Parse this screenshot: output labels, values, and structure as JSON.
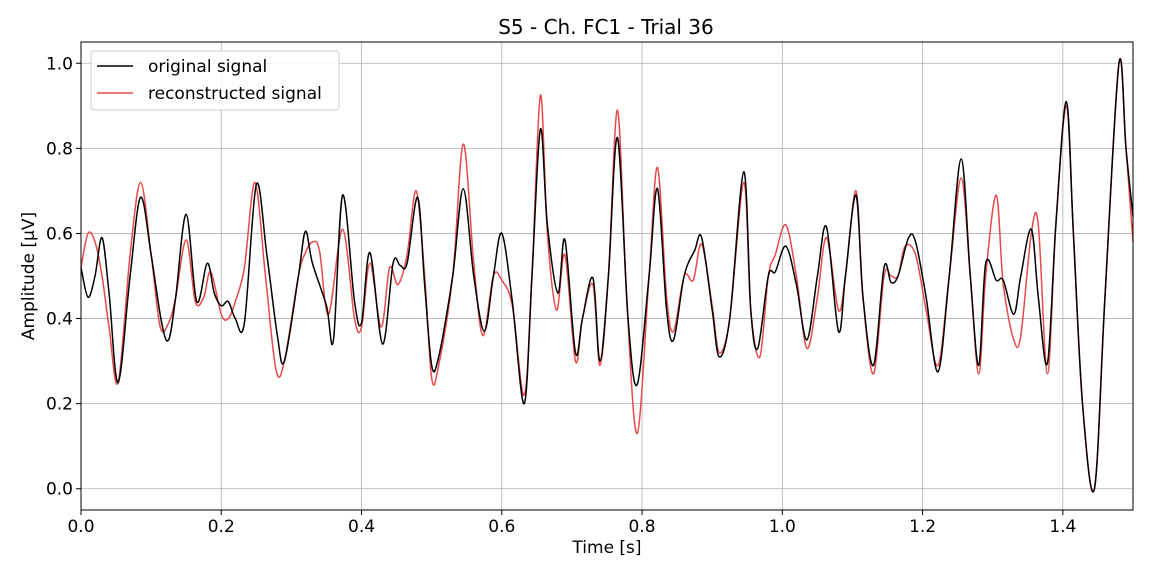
{
  "chart_data": {
    "type": "line",
    "title": "S5 - Ch. FC1 - Trial 36",
    "xlabel": "Time [s]",
    "ylabel": "Amplitude [μV]",
    "xlim": [
      0,
      1.5
    ],
    "ylim": [
      -0.05,
      1.05
    ],
    "xticks": [
      0.0,
      0.2,
      0.4,
      0.6,
      0.8,
      1.0,
      1.2,
      1.4
    ],
    "xtick_labels": [
      "0.0",
      "0.2",
      "0.4",
      "0.6",
      "0.8",
      "1.0",
      "1.2",
      "1.4"
    ],
    "yticks": [
      0.0,
      0.2,
      0.4,
      0.6,
      0.8,
      1.0
    ],
    "ytick_labels": [
      "0.0",
      "0.2",
      "0.4",
      "0.6",
      "0.8",
      "1.0"
    ],
    "grid": true,
    "legend_position": "top-left",
    "series": [
      {
        "name": "original signal",
        "color": "#000000",
        "x": [
          0.0,
          0.01,
          0.02,
          0.03,
          0.04,
          0.053,
          0.07,
          0.085,
          0.1,
          0.115,
          0.125,
          0.135,
          0.15,
          0.165,
          0.18,
          0.19,
          0.2,
          0.21,
          0.22,
          0.233,
          0.25,
          0.265,
          0.28,
          0.29,
          0.31,
          0.32,
          0.33,
          0.35,
          0.36,
          0.373,
          0.39,
          0.4,
          0.412,
          0.43,
          0.445,
          0.455,
          0.465,
          0.48,
          0.49,
          0.5,
          0.51,
          0.53,
          0.545,
          0.56,
          0.575,
          0.588,
          0.6,
          0.615,
          0.632,
          0.643,
          0.655,
          0.665,
          0.68,
          0.69,
          0.705,
          0.715,
          0.73,
          0.74,
          0.752,
          0.765,
          0.78,
          0.793,
          0.81,
          0.822,
          0.835,
          0.845,
          0.86,
          0.875,
          0.885,
          0.9,
          0.91,
          0.925,
          0.945,
          0.955,
          0.965,
          0.98,
          0.99,
          1.005,
          1.02,
          1.035,
          1.05,
          1.063,
          1.08,
          1.09,
          1.105,
          1.115,
          1.13,
          1.145,
          1.155,
          1.165,
          1.18,
          1.19,
          1.205,
          1.222,
          1.238,
          1.255,
          1.268,
          1.28,
          1.29,
          1.305,
          1.315,
          1.33,
          1.34,
          1.355,
          1.365,
          1.378,
          1.39,
          1.405,
          1.415,
          1.428,
          1.445,
          1.46,
          1.48,
          1.49,
          1.5
        ],
        "values": [
          0.52,
          0.45,
          0.5,
          0.59,
          0.46,
          0.25,
          0.5,
          0.685,
          0.55,
          0.39,
          0.35,
          0.45,
          0.645,
          0.44,
          0.53,
          0.46,
          0.43,
          0.44,
          0.4,
          0.39,
          0.715,
          0.55,
          0.36,
          0.3,
          0.5,
          0.605,
          0.53,
          0.43,
          0.35,
          0.69,
          0.44,
          0.39,
          0.555,
          0.34,
          0.53,
          0.525,
          0.53,
          0.685,
          0.48,
          0.29,
          0.31,
          0.5,
          0.705,
          0.5,
          0.37,
          0.5,
          0.6,
          0.44,
          0.2,
          0.5,
          0.845,
          0.62,
          0.46,
          0.585,
          0.32,
          0.4,
          0.495,
          0.3,
          0.5,
          0.825,
          0.4,
          0.245,
          0.5,
          0.705,
          0.42,
          0.35,
          0.5,
          0.56,
          0.59,
          0.42,
          0.31,
          0.4,
          0.745,
          0.42,
          0.33,
          0.5,
          0.51,
          0.57,
          0.48,
          0.35,
          0.5,
          0.615,
          0.37,
          0.5,
          0.69,
          0.45,
          0.29,
          0.52,
          0.485,
          0.5,
          0.59,
          0.58,
          0.45,
          0.275,
          0.5,
          0.775,
          0.5,
          0.29,
          0.53,
          0.49,
          0.49,
          0.41,
          0.5,
          0.61,
          0.45,
          0.295,
          0.62,
          0.91,
          0.6,
          0.2,
          0.0,
          0.45,
          1.0,
          0.8,
          0.64
        ]
      },
      {
        "name": "reconstructed signal",
        "color": "#e84a4a",
        "x": [
          0.0,
          0.01,
          0.02,
          0.03,
          0.04,
          0.053,
          0.07,
          0.085,
          0.1,
          0.113,
          0.125,
          0.135,
          0.15,
          0.163,
          0.175,
          0.185,
          0.2,
          0.21,
          0.22,
          0.233,
          0.248,
          0.263,
          0.278,
          0.29,
          0.31,
          0.32,
          0.33,
          0.34,
          0.353,
          0.373,
          0.39,
          0.4,
          0.412,
          0.428,
          0.44,
          0.452,
          0.465,
          0.478,
          0.49,
          0.5,
          0.51,
          0.53,
          0.545,
          0.56,
          0.573,
          0.588,
          0.6,
          0.615,
          0.632,
          0.643,
          0.655,
          0.665,
          0.678,
          0.69,
          0.705,
          0.715,
          0.73,
          0.74,
          0.752,
          0.765,
          0.778,
          0.793,
          0.81,
          0.822,
          0.835,
          0.845,
          0.86,
          0.873,
          0.885,
          0.9,
          0.91,
          0.925,
          0.945,
          0.955,
          0.968,
          0.98,
          0.99,
          1.005,
          1.02,
          1.035,
          1.05,
          1.063,
          1.08,
          1.09,
          1.105,
          1.115,
          1.13,
          1.145,
          1.155,
          1.165,
          1.175,
          1.19,
          1.205,
          1.222,
          1.238,
          1.255,
          1.268,
          1.28,
          1.29,
          1.305,
          1.315,
          1.33,
          1.34,
          1.355,
          1.365,
          1.378,
          1.39,
          1.405,
          1.415,
          1.428,
          1.445,
          1.46,
          1.48,
          1.49,
          1.5
        ],
        "values": [
          0.52,
          0.6,
          0.58,
          0.5,
          0.38,
          0.25,
          0.55,
          0.72,
          0.55,
          0.38,
          0.39,
          0.45,
          0.585,
          0.44,
          0.45,
          0.51,
          0.41,
          0.4,
          0.44,
          0.52,
          0.72,
          0.5,
          0.28,
          0.3,
          0.5,
          0.555,
          0.58,
          0.56,
          0.41,
          0.61,
          0.4,
          0.38,
          0.53,
          0.38,
          0.52,
          0.48,
          0.55,
          0.7,
          0.5,
          0.26,
          0.29,
          0.5,
          0.81,
          0.53,
          0.36,
          0.5,
          0.49,
          0.43,
          0.22,
          0.5,
          0.925,
          0.6,
          0.42,
          0.55,
          0.3,
          0.4,
          0.48,
          0.29,
          0.5,
          0.89,
          0.45,
          0.13,
          0.5,
          0.755,
          0.45,
          0.37,
          0.5,
          0.49,
          0.575,
          0.43,
          0.32,
          0.4,
          0.72,
          0.42,
          0.31,
          0.5,
          0.55,
          0.62,
          0.5,
          0.33,
          0.45,
          0.59,
          0.42,
          0.5,
          0.7,
          0.45,
          0.27,
          0.5,
          0.5,
          0.5,
          0.57,
          0.55,
          0.42,
          0.29,
          0.5,
          0.73,
          0.5,
          0.27,
          0.5,
          0.69,
          0.48,
          0.35,
          0.36,
          0.6,
          0.62,
          0.27,
          0.62,
          0.9,
          0.6,
          0.2,
          0.0,
          0.45,
          1.0,
          0.8,
          0.58
        ]
      }
    ]
  }
}
